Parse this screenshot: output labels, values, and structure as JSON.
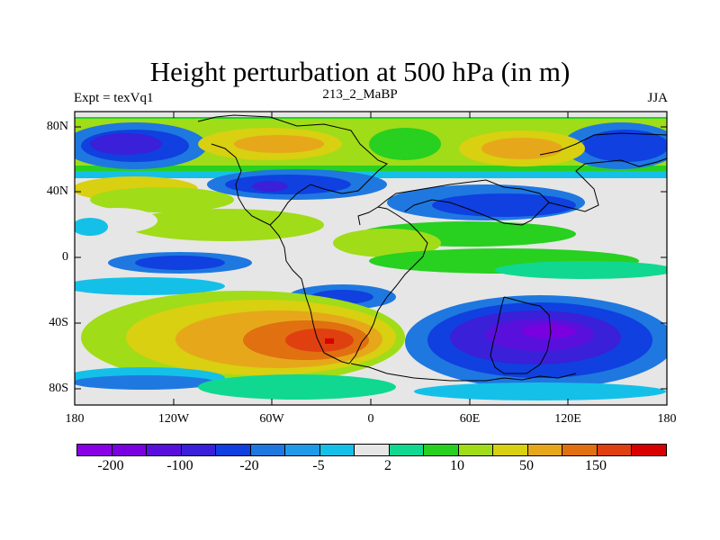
{
  "title": "Height perturbation at 500 hPa (in m)",
  "left_string": "Expt = texVq1",
  "center_string": "213_2_MaBP",
  "right_string": "JJA",
  "map": {
    "lat_labels": [
      "80N",
      "40N",
      "0",
      "40S",
      "80S"
    ],
    "lon_labels": [
      "180",
      "120W",
      "60W",
      "0",
      "60E",
      "120E",
      "180"
    ]
  },
  "colorbar": {
    "colors": [
      "#8a00e6",
      "#7a00e0",
      "#5a10dc",
      "#3a20d8",
      "#1040e0",
      "#1e78e0",
      "#1f9ae8",
      "#14c0e8",
      "#e6e6e6",
      "#10d890",
      "#28d020",
      "#a0dc18",
      "#d8d010",
      "#e6a81a",
      "#e07010",
      "#e04010",
      "#d80000"
    ],
    "labels": [
      "-200",
      "-100",
      "-20",
      "-5",
      "2",
      "10",
      "50",
      "150"
    ]
  },
  "background_color": "#e6e6e6"
}
